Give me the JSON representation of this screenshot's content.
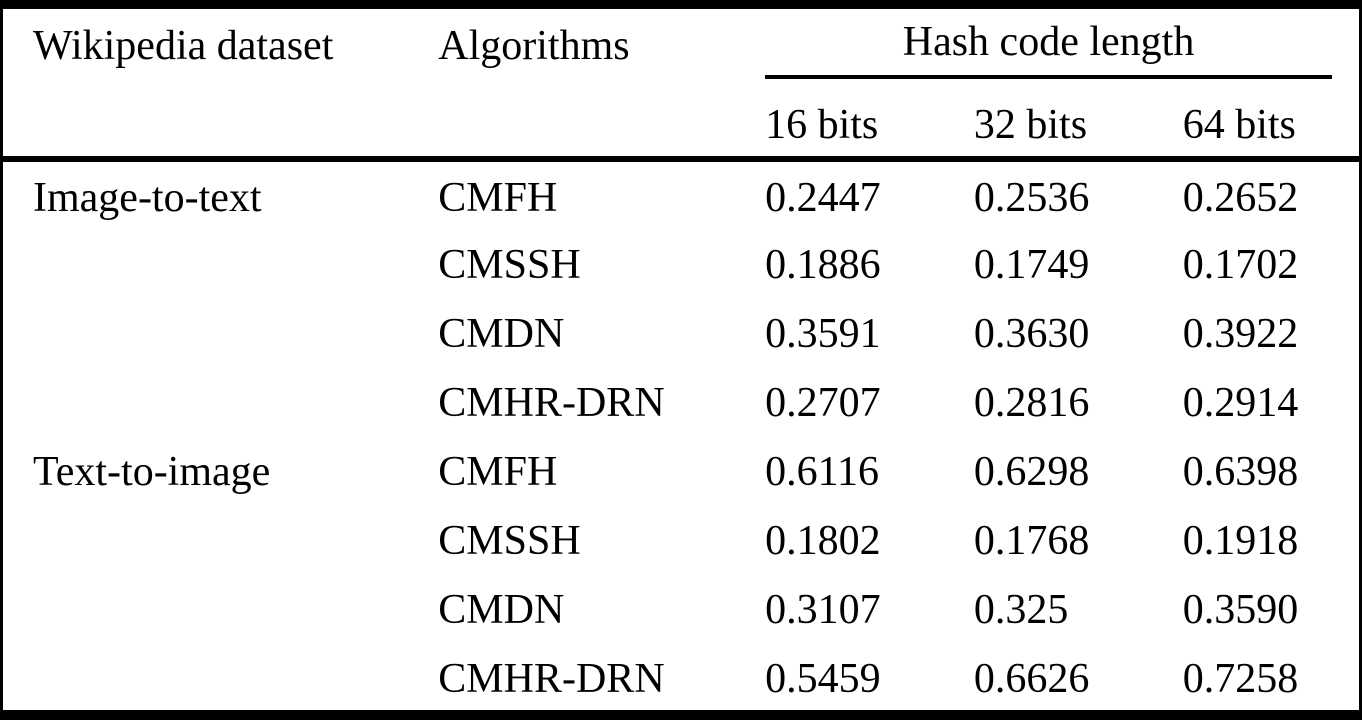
{
  "table": {
    "header": {
      "dataset_label": "Wikipedia dataset",
      "algorithms_label": "Algorithms",
      "group_label": "Hash code length",
      "subcols": [
        "16 bits",
        "32 bits",
        "64 bits"
      ]
    },
    "rows": [
      {
        "dataset": "Image-to-text",
        "algorithm": "CMFH",
        "b16": "0.2447",
        "b32": "0.2536",
        "b64": "0.2652"
      },
      {
        "dataset": "",
        "algorithm": "CMSSH",
        "b16": "0.1886",
        "b32": "0.1749",
        "b64": "0.1702"
      },
      {
        "dataset": "",
        "algorithm": "CMDN",
        "b16": "0.3591",
        "b32": "0.3630",
        "b64": "0.3922"
      },
      {
        "dataset": "",
        "algorithm": "CMHR-DRN",
        "b16": "0.2707",
        "b32": "0.2816",
        "b64": "0.2914"
      },
      {
        "dataset": "Text-to-image",
        "algorithm": "CMFH",
        "b16": "0.6116",
        "b32": "0.6298",
        "b64": "0.6398"
      },
      {
        "dataset": "",
        "algorithm": "CMSSH",
        "b16": "0.1802",
        "b32": "0.1768",
        "b64": "0.1918"
      },
      {
        "dataset": "",
        "algorithm": "CMDN",
        "b16": "0.3107",
        "b32": "0.325",
        "b64": "0.3590"
      },
      {
        "dataset": "",
        "algorithm": "CMHR-DRN",
        "b16": "0.5459",
        "b32": "0.6626",
        "b64": "0.7258"
      }
    ]
  },
  "colors": {
    "text": "#000000",
    "background": "#ffffff",
    "rule": "#000000"
  }
}
